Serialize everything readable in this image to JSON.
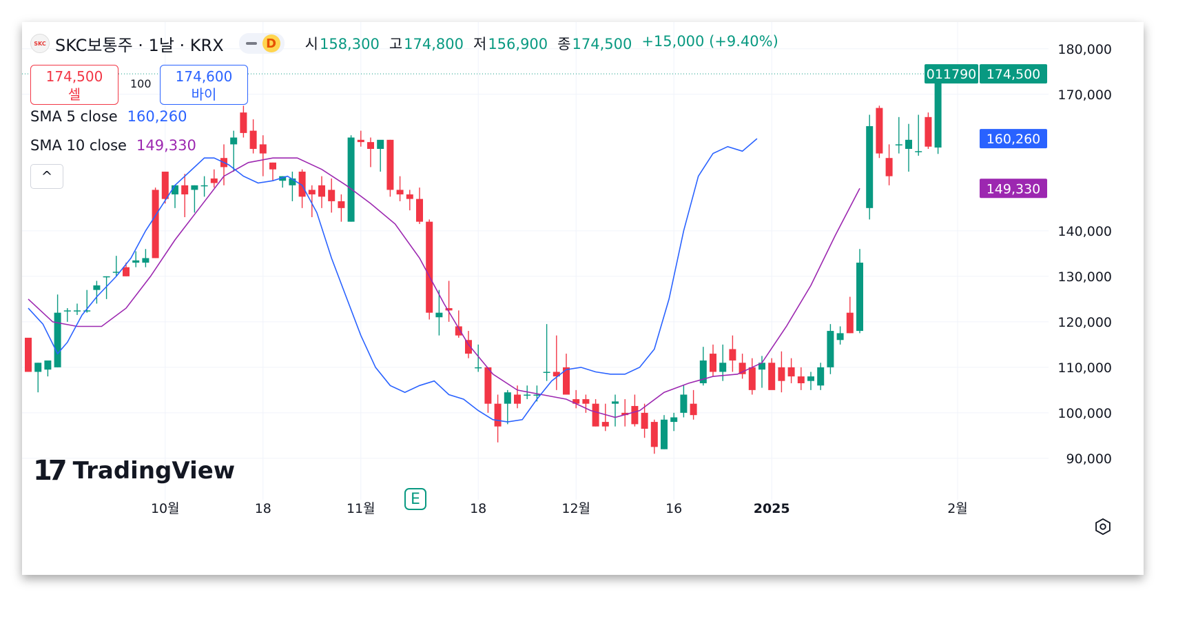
{
  "header": {
    "logo_text": "SKC",
    "symbol": "SKC보통주 · 1날 · KRX",
    "badge": "D",
    "ohlc": [
      {
        "label": "시",
        "value": "158,300"
      },
      {
        "label": "고",
        "value": "174,800"
      },
      {
        "label": "저",
        "value": "156,900"
      },
      {
        "label": "종",
        "value": "174,500"
      },
      {
        "label": "",
        "value": "+15,000 (+9.40%)"
      }
    ]
  },
  "trade": {
    "sell_price": "174,500",
    "sell_label": "셀",
    "spread": "100",
    "buy_price": "174,600",
    "buy_label": "바이"
  },
  "indicators": {
    "sma5_label": "SMA 5 close",
    "sma5_value": "160,260",
    "sma10_label": "SMA 10 close",
    "sma10_value": "149,330"
  },
  "collapse_glyph": "^",
  "brand": {
    "mark": "17",
    "name": "TradingView"
  },
  "earnings_badge": "E",
  "price_labels": {
    "ticker": "011790",
    "last": "174,500",
    "sma5": "160,260",
    "sma10": "149,330"
  },
  "colors": {
    "up": "#089981",
    "down": "#f23645",
    "sma5": "#2962ff",
    "sma10": "#9c27b0",
    "grid": "#f0f3fa"
  },
  "chart_data": {
    "type": "candlestick",
    "y_axis_ticks": [
      180000,
      170000,
      140000,
      130000,
      120000,
      110000,
      100000,
      90000
    ],
    "y_axis_tick_labels": [
      "180,000",
      "170,000",
      "140,000",
      "130,000",
      "120,000",
      "110,000",
      "100,000",
      "90,000"
    ],
    "ylim": [
      82000,
      183000
    ],
    "x_axis_labels": [
      {
        "label": "10월",
        "index": 14
      },
      {
        "label": "18",
        "index": 24
      },
      {
        "label": "11월",
        "index": 34
      },
      {
        "label": "18",
        "index": 46
      },
      {
        "label": "12월",
        "index": 56
      },
      {
        "label": "16",
        "index": 66
      },
      {
        "label": "2025",
        "index": 76,
        "bold": true
      },
      {
        "label": "2월",
        "index": 95
      }
    ],
    "candles": [
      [
        116500,
        116000,
        109000,
        109000
      ],
      [
        109000,
        111000,
        104500,
        111000
      ],
      [
        109500,
        111000,
        108000,
        111500
      ],
      [
        110000,
        126000,
        110000,
        122000
      ],
      [
        122500,
        123000,
        120000,
        122500
      ],
      [
        122500,
        124000,
        121500,
        122500
      ],
      [
        122500,
        127000,
        122000,
        122500
      ],
      [
        127000,
        129000,
        124000,
        128000
      ],
      [
        130000,
        130000,
        125000,
        130000
      ],
      [
        131000,
        134500,
        130000,
        131000
      ],
      [
        132000,
        133000,
        130000,
        130000
      ],
      [
        133000,
        135500,
        132000,
        133500
      ],
      [
        133000,
        136000,
        132000,
        134000
      ],
      [
        149000,
        149500,
        134000,
        134000
      ],
      [
        153000,
        153000,
        146000,
        147000
      ],
      [
        148000,
        149000,
        145000,
        150000
      ],
      [
        150000,
        152500,
        143000,
        148000
      ],
      [
        149000,
        150000,
        144000,
        150000
      ],
      [
        150000,
        152000,
        147500,
        150000
      ],
      [
        151500,
        153500,
        149500,
        150500
      ],
      [
        156000,
        159000,
        150000,
        154000
      ],
      [
        159000,
        162000,
        153000,
        160500
      ],
      [
        166000,
        167500,
        160500,
        161500
      ],
      [
        162000,
        164500,
        157000,
        158000
      ],
      [
        159000,
        161000,
        152000,
        157000
      ],
      [
        155000,
        155000,
        151000,
        153500
      ],
      [
        151000,
        152000,
        149500,
        152000
      ],
      [
        150000,
        153000,
        146500,
        151500
      ],
      [
        153000,
        153500,
        145000,
        147500
      ],
      [
        149000,
        150000,
        143000,
        148000
      ],
      [
        150000,
        152000,
        145000,
        147500
      ],
      [
        149000,
        151500,
        144000,
        146500
      ],
      [
        146500,
        148000,
        142000,
        145000
      ],
      [
        142000,
        161000,
        142000,
        160500
      ],
      [
        160000,
        162000,
        158500,
        159500
      ],
      [
        159500,
        160500,
        154000,
        158000
      ],
      [
        158000,
        159000,
        153000,
        160000
      ],
      [
        160000,
        160000,
        147500,
        149000
      ],
      [
        149000,
        152000,
        146500,
        148000
      ],
      [
        148000,
        149000,
        144500,
        147000
      ],
      [
        147000,
        149500,
        141500,
        142000
      ],
      [
        142000,
        142500,
        120500,
        122000
      ],
      [
        121000,
        127000,
        117000,
        122000
      ],
      [
        123000,
        129000,
        120000,
        122500
      ],
      [
        119000,
        122500,
        116500,
        117000
      ],
      [
        116000,
        118000,
        112000,
        113000
      ],
      [
        110000,
        115000,
        109000,
        110000
      ],
      [
        110000,
        110000,
        100000,
        102000
      ],
      [
        102000,
        104000,
        93500,
        97000
      ],
      [
        102000,
        105000,
        97500,
        104500
      ],
      [
        104000,
        106000,
        101000,
        102000
      ],
      [
        104000,
        106000,
        103000,
        104000
      ],
      [
        104000,
        106000,
        102500,
        104000
      ],
      [
        109000,
        119500,
        107000,
        109000
      ],
      [
        109000,
        117000,
        105000,
        108000
      ],
      [
        110000,
        113000,
        104000,
        104000
      ],
      [
        103000,
        105000,
        101000,
        102000
      ],
      [
        103000,
        104000,
        100000,
        102000
      ],
      [
        102000,
        103000,
        97000,
        97000
      ],
      [
        98000,
        102000,
        96000,
        97000
      ],
      [
        102000,
        104000,
        97000,
        102500
      ],
      [
        100000,
        103000,
        97000,
        99500
      ],
      [
        101500,
        104000,
        97000,
        97500
      ],
      [
        100000,
        102000,
        94500,
        96500
      ],
      [
        98000,
        98500,
        91000,
        92500
      ],
      [
        92000,
        99500,
        92000,
        98500
      ],
      [
        98000,
        100000,
        96000,
        99000
      ],
      [
        100000,
        106000,
        99000,
        104000
      ],
      [
        102000,
        105000,
        98500,
        99500
      ],
      [
        106500,
        114500,
        106000,
        111500
      ],
      [
        113000,
        115000,
        108000,
        109000
      ],
      [
        109000,
        115000,
        107000,
        111000
      ],
      [
        114000,
        117000,
        109000,
        111500
      ],
      [
        111000,
        113000,
        107500,
        108500
      ],
      [
        110000,
        112000,
        104000,
        105000
      ],
      [
        109500,
        112500,
        105500,
        111000
      ],
      [
        111000,
        112000,
        105500,
        105000
      ],
      [
        110000,
        113500,
        104500,
        107000
      ],
      [
        110000,
        112000,
        106500,
        108000
      ],
      [
        108000,
        110000,
        105000,
        106500
      ],
      [
        107000,
        109000,
        105000,
        108000
      ],
      [
        106000,
        111000,
        105000,
        110000
      ],
      [
        110000,
        119500,
        108500,
        118000
      ],
      [
        116000,
        119000,
        115000,
        117500
      ],
      [
        122000,
        125500,
        117500,
        117500
      ],
      [
        118000,
        136000,
        117500,
        133000
      ],
      [
        145000,
        165500,
        142500,
        163000
      ],
      [
        167000,
        167500,
        156000,
        157000
      ],
      [
        156000,
        159000,
        150000,
        152000
      ],
      [
        159000,
        165000,
        157000,
        159000
      ],
      [
        158000,
        163500,
        153000,
        160000
      ],
      [
        157500,
        165500,
        156500,
        157500
      ],
      [
        165000,
        166000,
        158000,
        158500
      ],
      [
        158300,
        174800,
        156900,
        174500
      ]
    ],
    "sma5": [
      [
        0,
        123000
      ],
      [
        3,
        119500
      ],
      [
        6,
        113000
      ],
      [
        8,
        115500
      ],
      [
        11,
        121500
      ],
      [
        14,
        125500
      ],
      [
        18,
        130000
      ],
      [
        21,
        134000
      ],
      [
        24,
        140000
      ],
      [
        27,
        145000
      ],
      [
        30,
        150000
      ],
      [
        33,
        153000
      ],
      [
        36,
        156000
      ],
      [
        38,
        156000
      ],
      [
        41,
        154500
      ],
      [
        44,
        152000
      ],
      [
        47,
        150500
      ],
      [
        50,
        151000
      ],
      [
        53,
        152000
      ],
      [
        56,
        150000
      ],
      [
        59,
        144000
      ],
      [
        62,
        134000
      ],
      [
        65,
        125500
      ],
      [
        68,
        117000
      ],
      [
        71,
        110000
      ],
      [
        74,
        106000
      ],
      [
        77,
        104500
      ],
      [
        80,
        106000
      ],
      [
        83,
        107000
      ],
      [
        86,
        104000
      ],
      [
        89,
        103000
      ],
      [
        92,
        100500
      ],
      [
        95,
        98500
      ],
      [
        98,
        98000
      ],
      [
        101,
        98500
      ],
      [
        104,
        103000
      ],
      [
        107,
        107000
      ],
      [
        110,
        109500
      ],
      [
        113,
        110000
      ],
      [
        116,
        109000
      ],
      [
        119,
        108500
      ],
      [
        122,
        108500
      ],
      [
        125,
        110000
      ],
      [
        128,
        114000
      ],
      [
        131,
        125000
      ],
      [
        134,
        140000
      ],
      [
        137,
        152000
      ],
      [
        140,
        157000
      ],
      [
        143,
        158500
      ],
      [
        146,
        157500
      ],
      [
        149,
        160260
      ]
    ],
    "sma10": [
      [
        0,
        125000
      ],
      [
        5,
        120000
      ],
      [
        10,
        119000
      ],
      [
        15,
        119000
      ],
      [
        20,
        123000
      ],
      [
        25,
        130000
      ],
      [
        30,
        138000
      ],
      [
        35,
        145000
      ],
      [
        40,
        152000
      ],
      [
        45,
        155000
      ],
      [
        50,
        156000
      ],
      [
        55,
        156000
      ],
      [
        60,
        153500
      ],
      [
        65,
        150000
      ],
      [
        70,
        146000
      ],
      [
        75,
        141500
      ],
      [
        80,
        134000
      ],
      [
        85,
        124000
      ],
      [
        90,
        115000
      ],
      [
        95,
        108500
      ],
      [
        100,
        105000
      ],
      [
        105,
        104000
      ],
      [
        110,
        103000
      ],
      [
        115,
        100500
      ],
      [
        120,
        99000
      ],
      [
        125,
        100500
      ],
      [
        130,
        104500
      ],
      [
        135,
        106500
      ],
      [
        140,
        108000
      ],
      [
        145,
        108500
      ],
      [
        150,
        111000
      ],
      [
        155,
        119000
      ],
      [
        160,
        128000
      ],
      [
        165,
        139000
      ],
      [
        170,
        149330
      ]
    ]
  }
}
